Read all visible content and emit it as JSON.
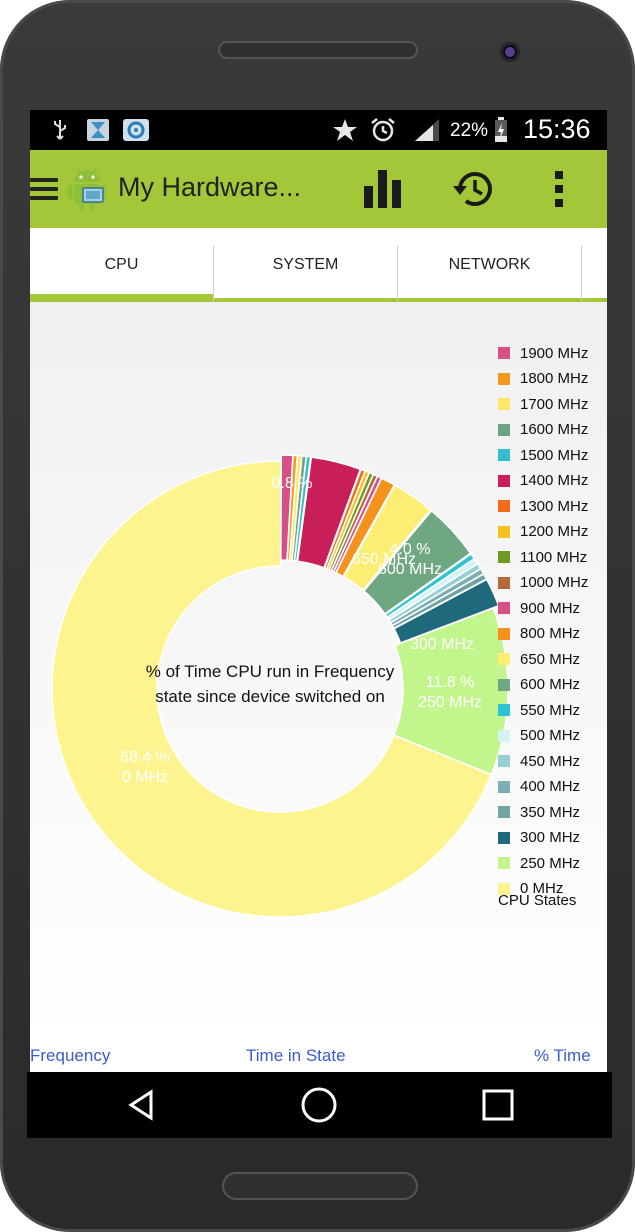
{
  "status_bar": {
    "battery_percent": "22%",
    "time": "15:36",
    "icons": [
      "usb-icon",
      "download-app-icon",
      "email-app-icon",
      "star-icon",
      "alarm-icon",
      "signal-icon",
      "battery-icon"
    ]
  },
  "app_bar": {
    "title": "My Hardware...",
    "icons": [
      "menu-icon",
      "android-app-icon",
      "bar-chart-icon",
      "history-icon",
      "more-vert-icon"
    ]
  },
  "tabs": [
    {
      "label": "CPU",
      "active": true
    },
    {
      "label": "SYSTEM",
      "active": false
    },
    {
      "label": "NETWORK",
      "active": false
    }
  ],
  "chart_data": {
    "type": "pie",
    "variant": "donut",
    "center_text_line1": "% of Time CPU run in Frequency",
    "center_text_line2": "state since device switched on",
    "legend_title": "CPU States",
    "slices": [
      {
        "label": "1900 MHz",
        "value": 0.8,
        "color": "#d64f86"
      },
      {
        "label": "1800 MHz",
        "value": 0.3,
        "color": "#f39a1e"
      },
      {
        "label": "1700 MHz",
        "value": 0.3,
        "color": "#fde86b"
      },
      {
        "label": "1600 MHz",
        "value": 0.3,
        "color": "#6aa482"
      },
      {
        "label": "1500 MHz",
        "value": 0.3,
        "color": "#35bcd0"
      },
      {
        "label": "1400 MHz",
        "value": 3.5,
        "color": "#c81e59"
      },
      {
        "label": "1300 MHz",
        "value": 0.3,
        "color": "#f36b1c"
      },
      {
        "label": "1200 MHz",
        "value": 0.3,
        "color": "#f6c21f"
      },
      {
        "label": "1100 MHz",
        "value": 0.3,
        "color": "#6e9b23"
      },
      {
        "label": "1000 MHz",
        "value": 0.3,
        "color": "#b56a3e"
      },
      {
        "label": "900 MHz",
        "value": 0.3,
        "color": "#d84f8a"
      },
      {
        "label": "800 MHz",
        "value": 1.0,
        "color": "#f5921e"
      },
      {
        "label": "650 MHz",
        "value": 3.0,
        "color": "#fbee73"
      },
      {
        "label": "600 MHz",
        "value": 4.0,
        "color": "#6ea781"
      },
      {
        "label": "550 MHz",
        "value": 0.4,
        "color": "#2cc3d3"
      },
      {
        "label": "500 MHz",
        "value": 0.4,
        "color": "#d4f4f3"
      },
      {
        "label": "450 MHz",
        "value": 0.4,
        "color": "#93cfd4"
      },
      {
        "label": "400 MHz",
        "value": 0.4,
        "color": "#7fadb6"
      },
      {
        "label": "350 MHz",
        "value": 0.4,
        "color": "#6fa4a1"
      },
      {
        "label": "300 MHz",
        "value": 2.0,
        "color": "#1e6a7c"
      },
      {
        "label": "250 MHz",
        "value": 11.8,
        "color": "#c3f58d"
      },
      {
        "label": "0 MHz",
        "value": 68.4,
        "color": "#fdf38f"
      }
    ]
  },
  "visible_slice_labels": [
    {
      "pct": "68.4 %",
      "freq": "0 MHz"
    },
    {
      "pct": "11.8 %",
      "freq": "250 MHz"
    },
    {
      "pct": "4.0 %",
      "freq": "600 MHz"
    },
    {
      "pct": "",
      "freq": "300 MHz"
    },
    {
      "pct": "",
      "freq": "650 MHz"
    },
    {
      "pct": "0.8 %",
      "freq": ""
    }
  ],
  "table_headers": [
    "Frequency",
    "Time in State",
    "% Time"
  ],
  "nav_bar": [
    "back-icon",
    "home-icon",
    "recents-icon"
  ]
}
